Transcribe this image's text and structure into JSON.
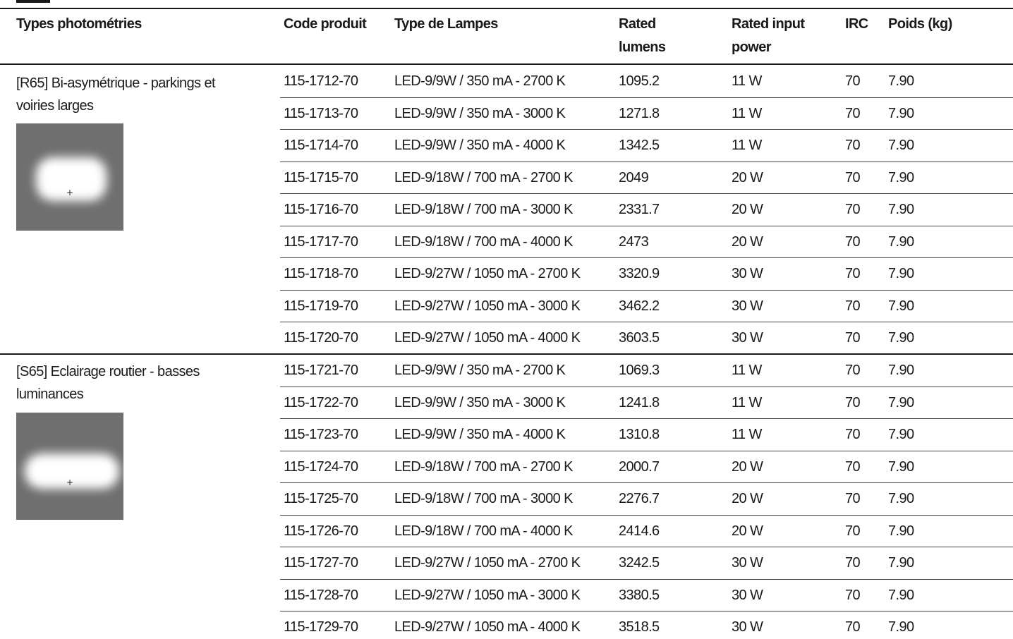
{
  "headers": {
    "photometry": "Types photométries",
    "code": "Code produit",
    "lamp": "Type de Lampes",
    "lumens_1": "Rated",
    "lumens_2": "lumens",
    "power_1": "Rated input",
    "power_2": "power",
    "irc": "IRC",
    "weight": "Poids (kg)"
  },
  "groups": [
    {
      "title": "[R65] Bi-asymétrique - parkings et voiries larges",
      "rows": [
        {
          "code": "115-1712-70",
          "lamp": "LED-9/9W / 350 mA - 2700 K",
          "lumens": "1095.2",
          "power": "11 W",
          "irc": "70",
          "weight": "7.90"
        },
        {
          "code": "115-1713-70",
          "lamp": "LED-9/9W / 350 mA - 3000 K",
          "lumens": "1271.8",
          "power": "11 W",
          "irc": "70",
          "weight": "7.90"
        },
        {
          "code": "115-1714-70",
          "lamp": "LED-9/9W / 350 mA - 4000 K",
          "lumens": "1342.5",
          "power": "11 W",
          "irc": "70",
          "weight": "7.90"
        },
        {
          "code": "115-1715-70",
          "lamp": "LED-9/18W / 700 mA - 2700 K",
          "lumens": "2049",
          "power": "20 W",
          "irc": "70",
          "weight": "7.90"
        },
        {
          "code": "115-1716-70",
          "lamp": "LED-9/18W / 700 mA - 3000 K",
          "lumens": "2331.7",
          "power": "20 W",
          "irc": "70",
          "weight": "7.90"
        },
        {
          "code": "115-1717-70",
          "lamp": "LED-9/18W / 700 mA - 4000 K",
          "lumens": "2473",
          "power": "20 W",
          "irc": "70",
          "weight": "7.90"
        },
        {
          "code": "115-1718-70",
          "lamp": "LED-9/27W / 1050 mA - 2700 K",
          "lumens": "3320.9",
          "power": "30 W",
          "irc": "70",
          "weight": "7.90"
        },
        {
          "code": "115-1719-70",
          "lamp": "LED-9/27W / 1050 mA - 3000 K",
          "lumens": "3462.2",
          "power": "30 W",
          "irc": "70",
          "weight": "7.90"
        },
        {
          "code": "115-1720-70",
          "lamp": "LED-9/27W / 1050 mA - 4000 K",
          "lumens": "3603.5",
          "power": "30 W",
          "irc": "70",
          "weight": "7.90"
        }
      ]
    },
    {
      "title": "[S65] Eclairage routier - basses luminances",
      "rows": [
        {
          "code": "115-1721-70",
          "lamp": "LED-9/9W / 350 mA - 2700 K",
          "lumens": "1069.3",
          "power": "11 W",
          "irc": "70",
          "weight": "7.90"
        },
        {
          "code": "115-1722-70",
          "lamp": "LED-9/9W / 350 mA - 3000 K",
          "lumens": "1241.8",
          "power": "11 W",
          "irc": "70",
          "weight": "7.90"
        },
        {
          "code": "115-1723-70",
          "lamp": "LED-9/9W / 350 mA - 4000 K",
          "lumens": "1310.8",
          "power": "11 W",
          "irc": "70",
          "weight": "7.90"
        },
        {
          "code": "115-1724-70",
          "lamp": "LED-9/18W / 700 mA - 2700 K",
          "lumens": "2000.7",
          "power": "20 W",
          "irc": "70",
          "weight": "7.90"
        },
        {
          "code": "115-1725-70",
          "lamp": "LED-9/18W / 700 mA - 3000 K",
          "lumens": "2276.7",
          "power": "20 W",
          "irc": "70",
          "weight": "7.90"
        },
        {
          "code": "115-1726-70",
          "lamp": "LED-9/18W / 700 mA - 4000 K",
          "lumens": "2414.6",
          "power": "20 W",
          "irc": "70",
          "weight": "7.90"
        },
        {
          "code": "115-1727-70",
          "lamp": "LED-9/27W / 1050 mA - 2700 K",
          "lumens": "3242.5",
          "power": "30 W",
          "irc": "70",
          "weight": "7.90"
        },
        {
          "code": "115-1728-70",
          "lamp": "LED-9/27W / 1050 mA - 3000 K",
          "lumens": "3380.5",
          "power": "30 W",
          "irc": "70",
          "weight": "7.90"
        },
        {
          "code": "115-1729-70",
          "lamp": "LED-9/27W / 1050 mA - 4000 K",
          "lumens": "3518.5",
          "power": "30 W",
          "irc": "70",
          "weight": "7.90"
        }
      ]
    }
  ]
}
